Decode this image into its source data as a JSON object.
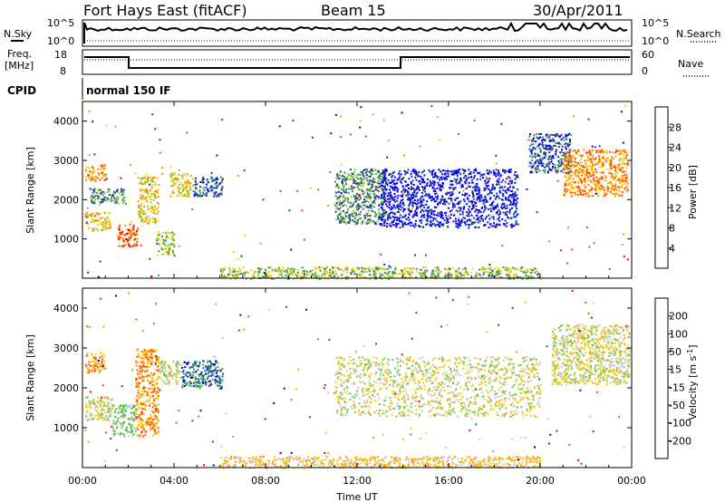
{
  "header": {
    "station": "Fort Hays East (fitACF)",
    "beam": "Beam 15",
    "date": "30/Apr/2011"
  },
  "panels": {
    "nsky": {
      "left_label": "N.Sky",
      "right_label": "N.Search",
      "left_ticks": [
        "10^5",
        "10^0"
      ],
      "right_ticks": [
        "10^5",
        "10^0"
      ]
    },
    "freq": {
      "left_label_1": "Freq.",
      "left_label_2": "[MHz]",
      "right_label": "Nave",
      "left_ticks": [
        "18",
        "8"
      ],
      "right_ticks": [
        "60",
        "0"
      ]
    },
    "cpid": {
      "label": "CPID",
      "value": "normal 150 IF"
    }
  },
  "chart_data": [
    {
      "type": "heatmap",
      "name": "power",
      "ylabel": "Slant Range [km]",
      "ylim": [
        0,
        4500
      ],
      "yticks": [
        "1000",
        "2000",
        "3000",
        "4000"
      ],
      "colorbar_label": "Power [dB]",
      "colorbar_ticks": [
        "4",
        "8",
        "12",
        "16",
        "20",
        "24",
        "28"
      ],
      "colors": [
        "#0000ff",
        "#1e3c8c",
        "#3c8c64",
        "#8cc83c",
        "#ffd200",
        "#ff8c00",
        "#ff4600",
        "#ff0000"
      ],
      "features": [
        {
          "t0": 0.1,
          "t1": 1.2,
          "r0": 1200,
          "r1": 1700,
          "level": 4
        },
        {
          "t0": 0.1,
          "t1": 1.0,
          "r0": 2500,
          "r1": 2900,
          "level": 5
        },
        {
          "t0": 0.3,
          "t1": 1.9,
          "r0": 1900,
          "r1": 2300,
          "level": 2
        },
        {
          "t0": 1.5,
          "t1": 2.4,
          "r0": 800,
          "r1": 1400,
          "level": 6
        },
        {
          "t0": 2.4,
          "t1": 3.3,
          "r0": 1400,
          "r1": 2600,
          "level": 4
        },
        {
          "t0": 3.2,
          "t1": 4.0,
          "r0": 600,
          "r1": 1200,
          "level": 3
        },
        {
          "t0": 3.8,
          "t1": 4.8,
          "r0": 2100,
          "r1": 2700,
          "level": 4
        },
        {
          "t0": 4.8,
          "t1": 6.1,
          "r0": 2100,
          "r1": 2600,
          "level": 1
        },
        {
          "t0": 11.0,
          "t1": 13.2,
          "r0": 1400,
          "r1": 2800,
          "level": 2
        },
        {
          "t0": 13.0,
          "t1": 19.0,
          "r0": 1300,
          "r1": 2800,
          "level": 0
        },
        {
          "t0": 19.5,
          "t1": 21.3,
          "r0": 2700,
          "r1": 3700,
          "level": 1
        },
        {
          "t0": 21.0,
          "t1": 23.8,
          "r0": 2100,
          "r1": 3300,
          "level": 5
        },
        {
          "t0": 6.0,
          "t1": 20.0,
          "r0": 0,
          "r1": 300,
          "level": 3
        }
      ]
    },
    {
      "type": "heatmap",
      "name": "velocity",
      "ylabel": "Slant Range [km]",
      "ylim": [
        0,
        4500
      ],
      "yticks": [
        "1000",
        "2000",
        "3000",
        "4000"
      ],
      "colorbar_label": "Velocity [m s",
      "colorbar_label_sup": "-1",
      "colorbar_label_end": "]",
      "colorbar_ticks": [
        "-200",
        "-100",
        "-50",
        "-15",
        "15",
        "50",
        "100",
        "200"
      ],
      "colors": [
        "#ff0000",
        "#ff5000",
        "#ff9600",
        "#ffc800",
        "#c8c8c8",
        "#78c850",
        "#3cb43c",
        "#1e5aa0",
        "#0000c8"
      ],
      "features": [
        {
          "t0": 0.1,
          "t1": 1.3,
          "r0": 1200,
          "r1": 1800,
          "level": 4
        },
        {
          "t0": 0.1,
          "t1": 1.0,
          "r0": 2400,
          "r1": 2900,
          "level": 2
        },
        {
          "t0": 1.3,
          "t1": 2.3,
          "r0": 800,
          "r1": 1600,
          "level": 5
        },
        {
          "t0": 2.3,
          "t1": 3.3,
          "r0": 800,
          "r1": 3000,
          "level": 2
        },
        {
          "t0": 3.3,
          "t1": 4.3,
          "r0": 2100,
          "r1": 2700,
          "level": 4
        },
        {
          "t0": 4.3,
          "t1": 6.1,
          "r0": 2000,
          "r1": 2700,
          "level": 7
        },
        {
          "t0": 11.0,
          "t1": 20.0,
          "r0": 1300,
          "r1": 2800,
          "level": 4
        },
        {
          "t0": 20.5,
          "t1": 23.9,
          "r0": 2100,
          "r1": 3600,
          "level": 4
        },
        {
          "t0": 6.0,
          "t1": 20.0,
          "r0": 0,
          "r1": 300,
          "level": 3
        }
      ]
    }
  ],
  "time_axis": {
    "xlabel": "Time UT",
    "xlim": [
      0,
      24
    ],
    "ticks": [
      "00:00",
      "04:00",
      "08:00",
      "12:00",
      "16:00",
      "20:00",
      "00:00"
    ]
  }
}
